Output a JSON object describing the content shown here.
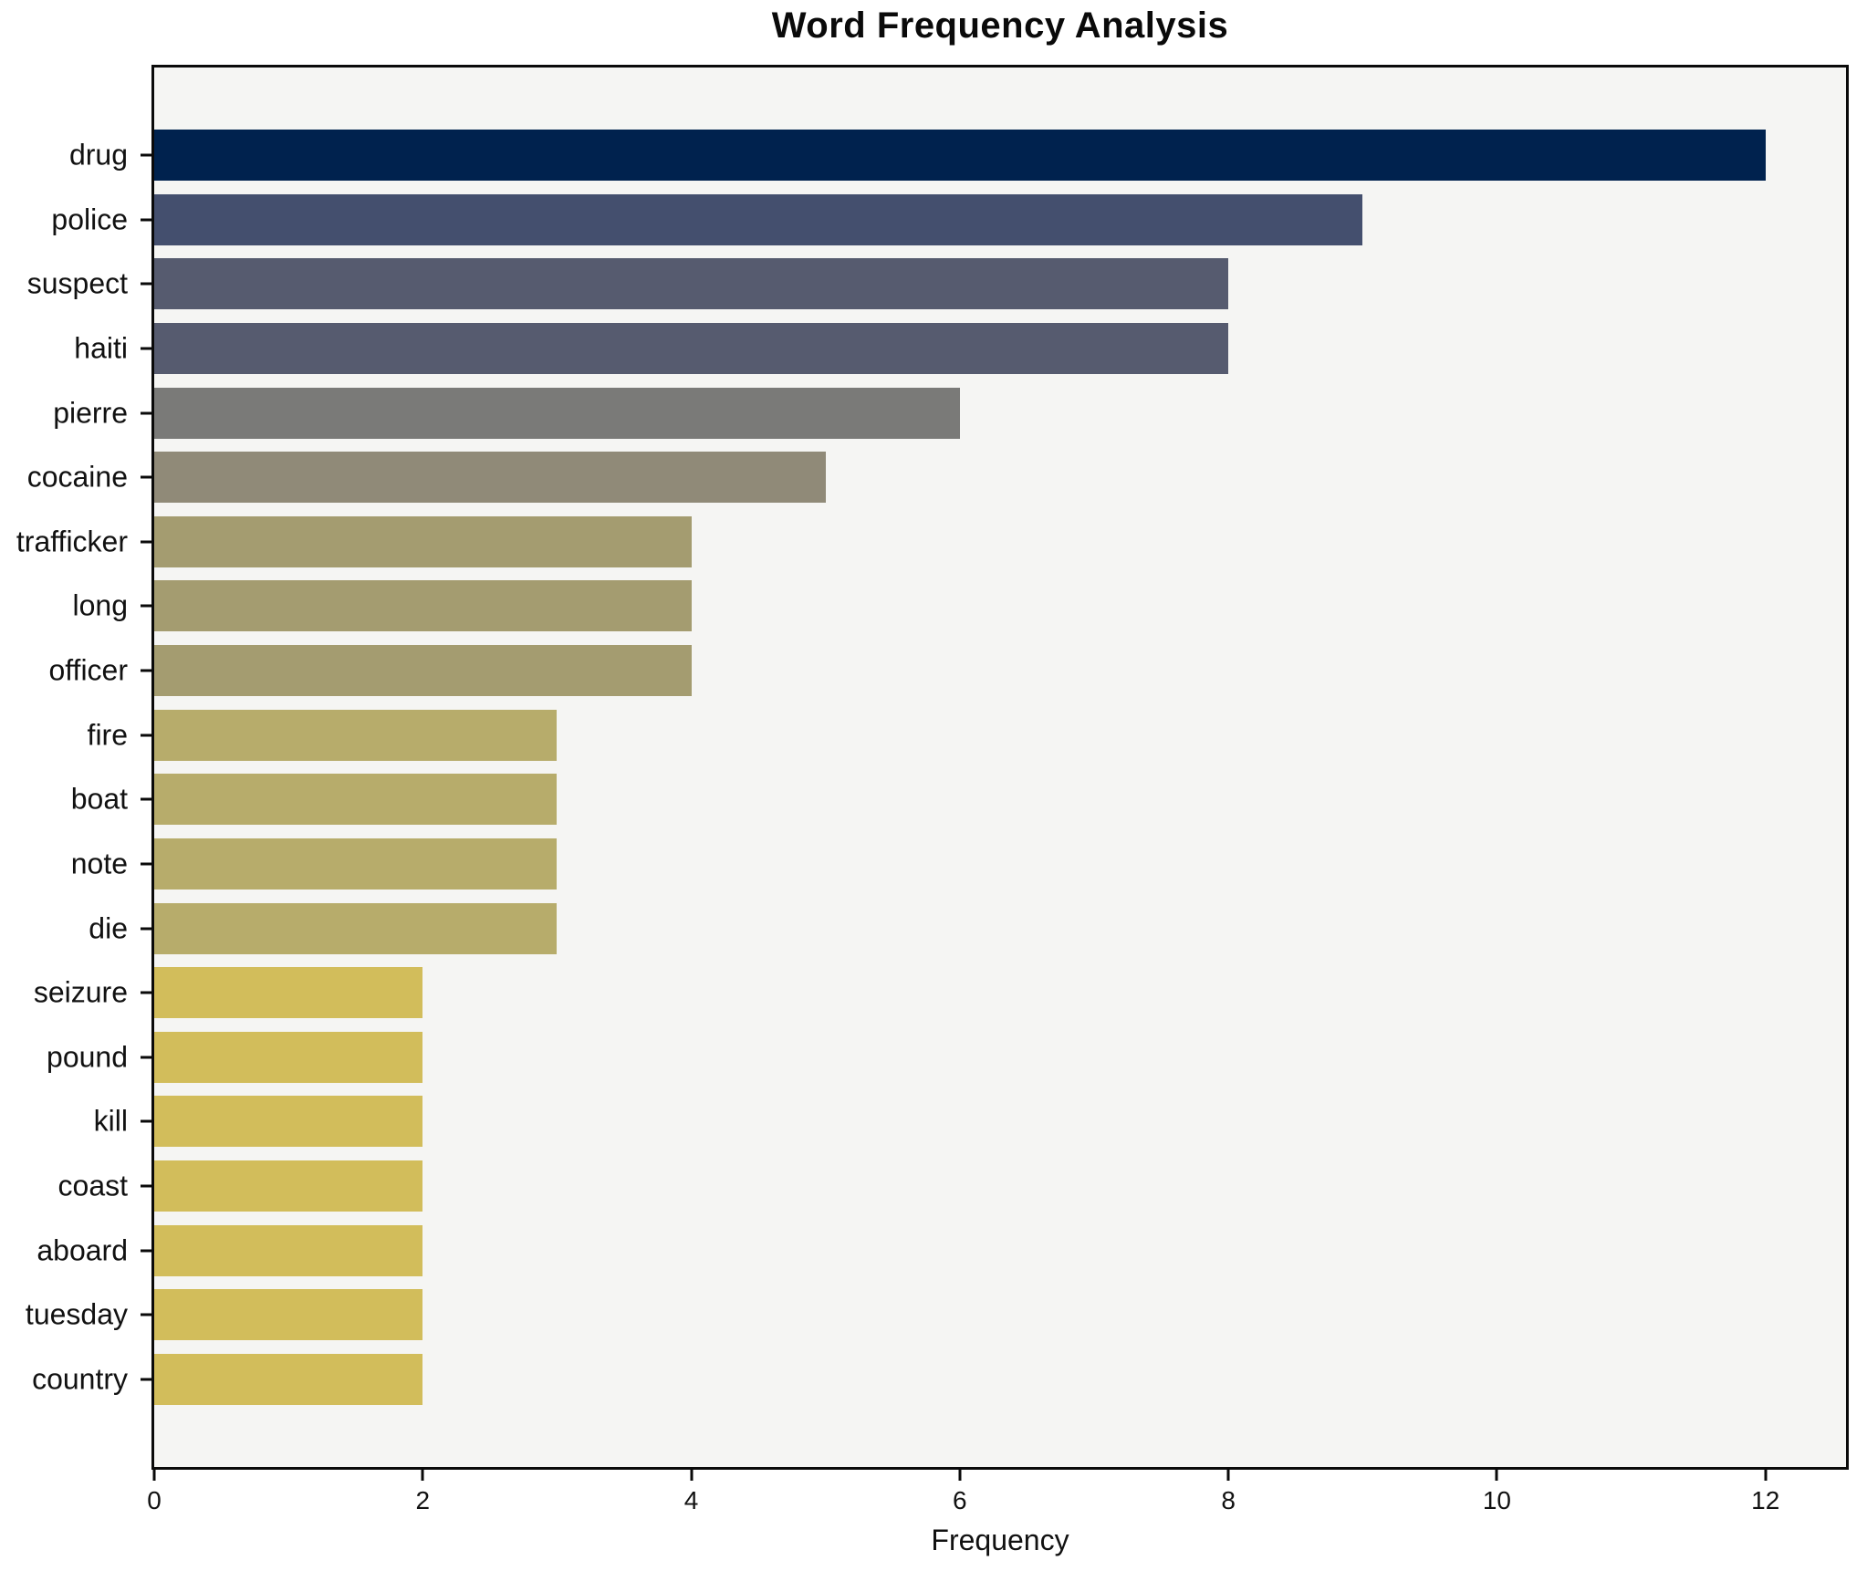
{
  "title": "Word Frequency Analysis",
  "chart_data": {
    "type": "bar",
    "orientation": "horizontal",
    "title": "Word Frequency Analysis",
    "xlabel": "Frequency",
    "ylabel": "",
    "categories": [
      "drug",
      "police",
      "suspect",
      "haiti",
      "pierre",
      "cocaine",
      "trafficker",
      "long",
      "officer",
      "fire",
      "boat",
      "note",
      "die",
      "seizure",
      "pound",
      "kill",
      "coast",
      "aboard",
      "tuesday",
      "country"
    ],
    "values": [
      12,
      9,
      8,
      8,
      6,
      5,
      4,
      4,
      4,
      3,
      3,
      3,
      3,
      2,
      2,
      2,
      2,
      2,
      2,
      2
    ],
    "bar_colors": [
      "#00224e",
      "#444f6e",
      "#565b6f",
      "#565b6f",
      "#7a7a78",
      "#908a78",
      "#a49c70",
      "#a49c70",
      "#a49c70",
      "#b7ac6b",
      "#b7ac6b",
      "#b7ac6b",
      "#b7ac6b",
      "#d2bd5b",
      "#d2bd5b",
      "#d2bd5b",
      "#d2bd5b",
      "#d2bd5b",
      "#d2bd5b",
      "#d2bd5b"
    ],
    "x_ticks": [
      0,
      2,
      4,
      6,
      8,
      10,
      12
    ],
    "xlim": [
      0,
      12.6
    ],
    "grid": false,
    "legend": null,
    "plot_bg": "#f5f5f3",
    "fig_bg": "#ffffff",
    "axis_color": "#0a0a0a"
  }
}
